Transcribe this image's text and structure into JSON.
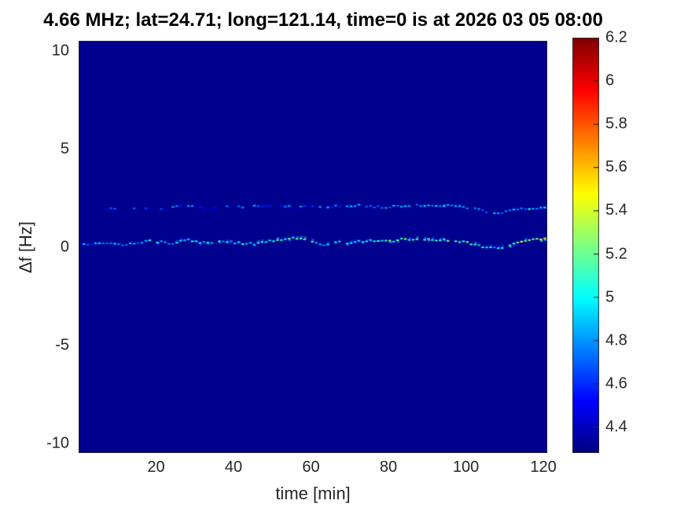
{
  "title": "4.66 MHz;  lat=24.71; long=121.14, time=0 is at 2026 03 05 08:00",
  "chart_data": {
    "type": "heatmap",
    "title": "4.66 MHz;  lat=24.71; long=121.14, time=0 is at 2026 03 05 08:00",
    "xlabel": "time [min]",
    "ylabel": "Δf [Hz]",
    "xlim": [
      0,
      121
    ],
    "ylim": [
      -10.5,
      10.5
    ],
    "xticks": [
      20,
      40,
      60,
      80,
      100,
      120
    ],
    "yticks": [
      10,
      5,
      0,
      -5,
      -10
    ],
    "grid": false,
    "colormap": "jet",
    "clim": [
      4.28,
      6.2
    ],
    "colorbar_ticks": [
      6.2,
      6,
      5.8,
      5.6,
      5.4,
      5.2,
      5,
      4.8,
      4.6,
      4.4
    ],
    "colorbar_position": "right",
    "background_value": 4.31,
    "series_note": "points are [time_min, delta_f_Hz, spectral_value, dash_density]; two narrow Doppler traces over a uniform low-value background",
    "series": [
      {
        "name": "doppler-trace-near-0Hz",
        "points": [
          [
            0,
            0.22,
            4.75,
            0.9
          ],
          [
            3,
            0.15,
            4.7,
            0.85
          ],
          [
            6,
            0.28,
            4.85,
            0.9
          ],
          [
            9,
            0.2,
            4.8,
            0.9
          ],
          [
            12,
            0.15,
            4.75,
            0.85
          ],
          [
            15,
            0.22,
            4.85,
            0.9
          ],
          [
            18,
            0.35,
            4.9,
            0.9
          ],
          [
            21,
            0.28,
            4.95,
            0.9
          ],
          [
            24,
            0.18,
            4.9,
            0.85
          ],
          [
            27,
            0.42,
            5.0,
            0.9
          ],
          [
            30,
            0.3,
            4.9,
            0.9
          ],
          [
            33,
            0.25,
            4.95,
            0.9
          ],
          [
            36,
            0.3,
            5.0,
            0.9
          ],
          [
            39,
            0.28,
            4.9,
            0.85
          ],
          [
            42,
            0.22,
            4.95,
            0.9
          ],
          [
            45,
            0.2,
            5.0,
            0.9
          ],
          [
            48,
            0.3,
            5.05,
            0.9
          ],
          [
            51,
            0.4,
            5.1,
            0.9
          ],
          [
            54,
            0.5,
            5.15,
            0.95
          ],
          [
            57,
            0.42,
            5.1,
            0.9
          ],
          [
            60,
            0.3,
            5.0,
            0.9
          ],
          [
            63,
            0.15,
            4.9,
            0.85
          ],
          [
            66,
            0.32,
            5.05,
            0.9
          ],
          [
            69,
            0.25,
            5.0,
            0.9
          ],
          [
            72,
            0.3,
            5.05,
            0.9
          ],
          [
            75,
            0.35,
            5.1,
            0.9
          ],
          [
            78,
            0.4,
            5.1,
            0.9
          ],
          [
            81,
            0.35,
            5.15,
            0.95
          ],
          [
            84,
            0.45,
            5.2,
            0.95
          ],
          [
            87,
            0.4,
            5.15,
            0.9
          ],
          [
            90,
            0.42,
            5.2,
            0.9
          ],
          [
            93,
            0.4,
            5.2,
            0.9
          ],
          [
            96,
            0.35,
            5.15,
            0.9
          ],
          [
            99,
            0.3,
            5.1,
            0.9
          ],
          [
            102,
            0.15,
            5.0,
            0.85
          ],
          [
            105,
            0.0,
            4.9,
            0.85
          ],
          [
            108,
            -0.05,
            4.9,
            0.9
          ],
          [
            111,
            0.1,
            5.1,
            0.9
          ],
          [
            114,
            0.3,
            5.3,
            0.95
          ],
          [
            117,
            0.42,
            5.35,
            0.95
          ],
          [
            121,
            0.45,
            5.4,
            0.95
          ]
        ]
      },
      {
        "name": "doppler-trace-near-2Hz",
        "points": [
          [
            6,
            1.95,
            4.5,
            0.25
          ],
          [
            9,
            2.0,
            4.55,
            0.3
          ],
          [
            12,
            2.05,
            4.6,
            0.35
          ],
          [
            15,
            2.05,
            4.6,
            0.35
          ],
          [
            18,
            1.95,
            4.55,
            0.3
          ],
          [
            21,
            2.0,
            4.6,
            0.35
          ],
          [
            24,
            2.12,
            4.7,
            0.6
          ],
          [
            27,
            2.15,
            4.75,
            0.65
          ],
          [
            30,
            2.1,
            4.7,
            0.55
          ],
          [
            33,
            2.0,
            4.6,
            0.4
          ],
          [
            36,
            2.08,
            4.65,
            0.5
          ],
          [
            39,
            2.1,
            4.65,
            0.5
          ],
          [
            42,
            2.05,
            4.7,
            0.6
          ],
          [
            45,
            2.12,
            4.7,
            0.6
          ],
          [
            48,
            2.1,
            4.72,
            0.65
          ],
          [
            51,
            2.15,
            4.72,
            0.6
          ],
          [
            54,
            2.12,
            4.7,
            0.6
          ],
          [
            57,
            2.1,
            4.75,
            0.7
          ],
          [
            60,
            2.08,
            4.72,
            0.7
          ],
          [
            63,
            2.05,
            4.7,
            0.75
          ],
          [
            66,
            2.1,
            4.75,
            0.8
          ],
          [
            69,
            2.12,
            4.78,
            0.8
          ],
          [
            72,
            2.15,
            4.78,
            0.8
          ],
          [
            75,
            2.1,
            4.75,
            0.8
          ],
          [
            78,
            2.05,
            4.8,
            0.85
          ],
          [
            81,
            2.1,
            4.82,
            0.85
          ],
          [
            84,
            2.12,
            4.85,
            0.85
          ],
          [
            87,
            2.15,
            4.85,
            0.85
          ],
          [
            90,
            2.1,
            4.88,
            0.85
          ],
          [
            93,
            2.15,
            4.9,
            0.9
          ],
          [
            96,
            2.12,
            4.85,
            0.85
          ],
          [
            99,
            2.08,
            4.85,
            0.85
          ],
          [
            102,
            2.0,
            4.8,
            0.8
          ],
          [
            104,
            1.88,
            4.72,
            0.8
          ],
          [
            106,
            1.78,
            4.7,
            0.8
          ],
          [
            108,
            1.78,
            4.72,
            0.8
          ],
          [
            110,
            1.85,
            4.75,
            0.85
          ],
          [
            113,
            1.95,
            4.85,
            0.9
          ],
          [
            116,
            2.0,
            4.9,
            0.9
          ],
          [
            119,
            2.05,
            4.92,
            0.9
          ],
          [
            121,
            2.05,
            4.95,
            0.9
          ]
        ]
      }
    ]
  },
  "colors": {
    "figure_background": "#ffffff",
    "plot_background_navy": "#00008e",
    "tick_label_color": "#262626",
    "title_color": "#000000"
  }
}
